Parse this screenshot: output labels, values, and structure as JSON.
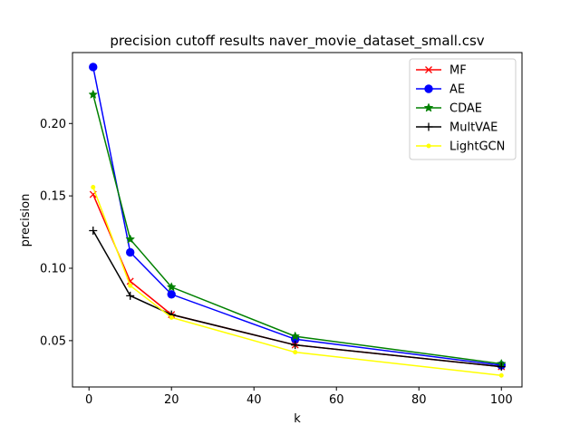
{
  "chart_data": {
    "type": "line",
    "title": "precision cutoff results naver_movie_dataset_small.csv",
    "xlabel": "k",
    "ylabel": "precision",
    "xlim": [
      -4,
      105
    ],
    "ylim": [
      0.018,
      0.249
    ],
    "xticks": [
      0,
      20,
      40,
      60,
      80,
      100
    ],
    "yticks": [
      0.05,
      0.1,
      0.15,
      0.2
    ],
    "xtick_labels": [
      "0",
      "20",
      "40",
      "60",
      "80",
      "100"
    ],
    "ytick_labels": [
      "0.05",
      "0.10",
      "0.15",
      "0.20"
    ],
    "legend_position": "top-right",
    "grid": false,
    "x": [
      1,
      10,
      20,
      50,
      100
    ],
    "series": [
      {
        "name": "MF",
        "color": "#ff0000",
        "marker": "x",
        "values": [
          0.151,
          0.091,
          0.068,
          0.047,
          0.032
        ]
      },
      {
        "name": "AE",
        "color": "#0000ff",
        "marker": "circle",
        "values": [
          0.239,
          0.111,
          0.082,
          0.051,
          0.033
        ]
      },
      {
        "name": "CDAE",
        "color": "#008000",
        "marker": "star",
        "values": [
          0.22,
          0.12,
          0.087,
          0.053,
          0.034
        ]
      },
      {
        "name": "MultVAE",
        "color": "#000000",
        "marker": "plus",
        "values": [
          0.126,
          0.081,
          0.068,
          0.047,
          0.032
        ]
      },
      {
        "name": "LightGCN",
        "color": "#ffff00",
        "marker": "point",
        "values": [
          0.156,
          0.088,
          0.066,
          0.042,
          0.026
        ]
      }
    ]
  }
}
